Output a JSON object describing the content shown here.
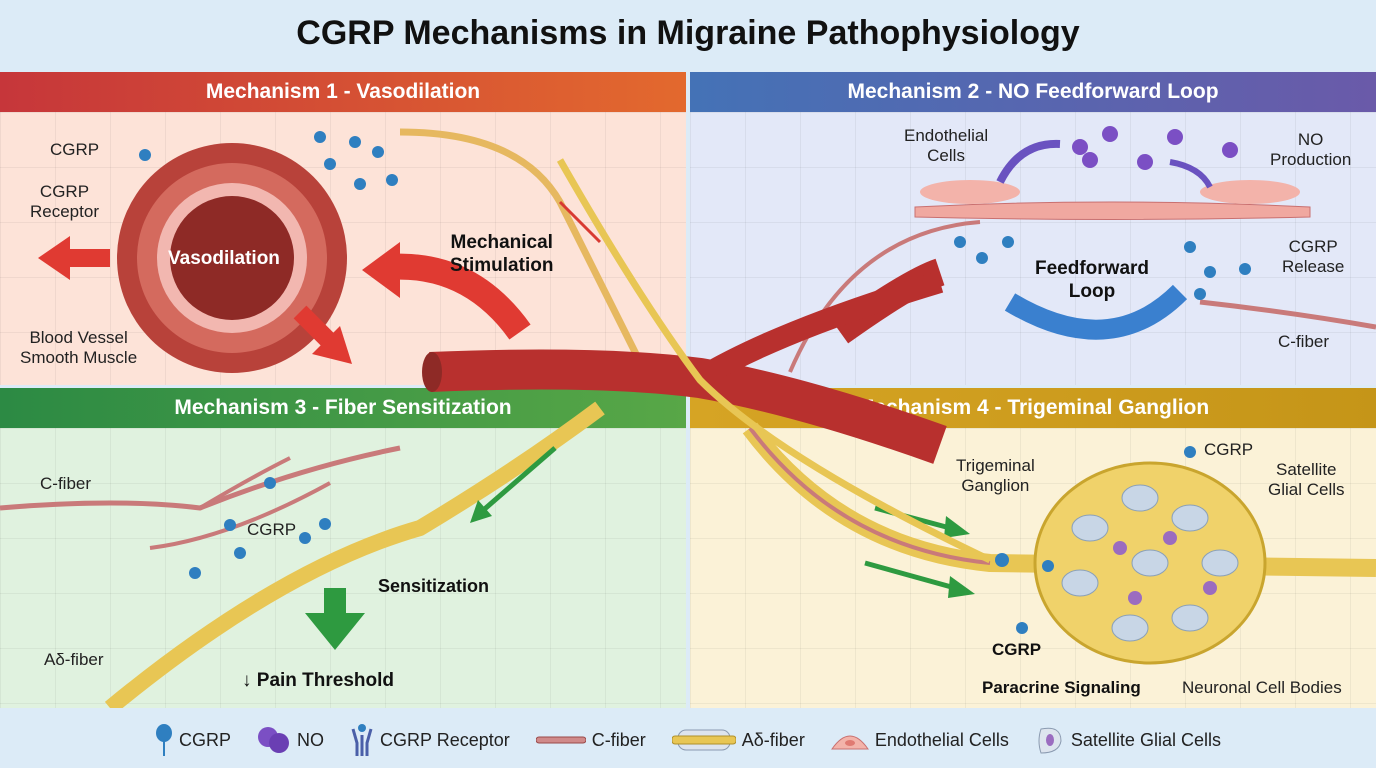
{
  "title": "CGRP Mechanisms in Migraine Pathophysiology",
  "panels": {
    "m1": {
      "header": "Mechanism 1 - Vasodilation",
      "cgrp": "CGRP",
      "receptor": "CGRP\nReceptor",
      "vasodilation": "Vasodilation",
      "muscle": "Blood Vessel\nSmooth Muscle",
      "mechanical": "Mechanical\nStimulation"
    },
    "m2": {
      "header": "Mechanism 2 - NO Feedforward Loop",
      "endothelial": "Endothelial\nCells",
      "no_production": "NO\nProduction",
      "feedforward": "Feedforward\nLoop",
      "release": "CGRP\nRelease",
      "cfiber": "C-fiber"
    },
    "m3": {
      "header": "Mechanism 3 - Fiber Sensitization",
      "cfiber": "C-fiber",
      "cgrp": "CGRP",
      "sensitization": "Sensitization",
      "adfiber": "Aδ-fiber",
      "pain": "↓ Pain Threshold"
    },
    "m4": {
      "header": "Mechanism 4 - Trigeminal Ganglion",
      "ganglion": "Trigeminal\nGanglion",
      "cgrp_top": "CGRP",
      "satellite": "Satellite\nGlial Cells",
      "cgrp_bottom": "CGRP",
      "paracrine": "Paracrine Signaling",
      "neuronal": "Neuronal Cell Bodies"
    }
  },
  "legend": [
    {
      "icon": "cgrp-icon",
      "label": "CGRP"
    },
    {
      "icon": "no-molecule-icon",
      "label": "NO"
    },
    {
      "icon": "cgrp-receptor-icon",
      "label": "CGRP Receptor"
    },
    {
      "icon": "c-fiber-icon",
      "label": "C-fiber"
    },
    {
      "icon": "ad-fiber-icon",
      "label": "Aδ-fiber"
    },
    {
      "icon": "endothelial-cell-icon",
      "label": "Endothelial Cells"
    },
    {
      "icon": "satellite-glial-cell-icon",
      "label": "Satellite Glial Cells"
    }
  ],
  "colors": {
    "cgrp": "#2f7fc0",
    "no": "#7b4fc4",
    "vessel": "#b8302e",
    "c_fiber": "#c97a7a",
    "ad_fiber": "#e8c654"
  }
}
